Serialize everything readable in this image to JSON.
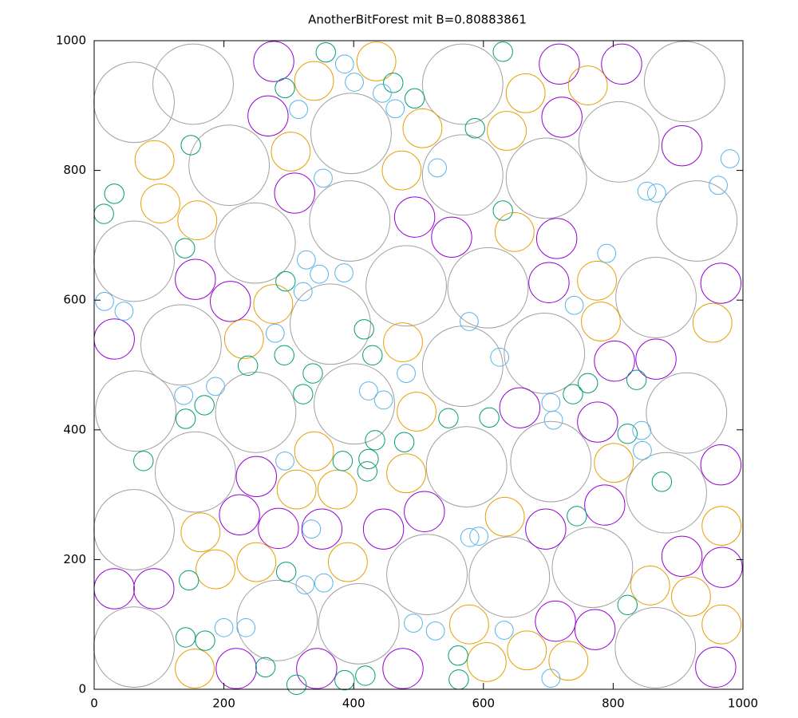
{
  "chart_data": {
    "type": "circles",
    "title": "AnotherBitForest mit B=0.80883861",
    "xlim": [
      0,
      1000
    ],
    "ylim": [
      0,
      1000
    ],
    "xticks": [
      0,
      200,
      400,
      600,
      800,
      1000
    ],
    "yticks": [
      0,
      200,
      400,
      600,
      800,
      1000
    ],
    "series": [
      {
        "color": "#a0a0a0",
        "x": [
          61.5,
          152.5,
          396,
          568,
          910,
          208,
          568,
          697,
          809,
          394,
          248,
          61.5,
          929,
          481,
          607,
          364,
          866,
          134,
          568,
          694,
          401,
          249,
          64,
          574,
          704,
          913,
          156,
          882,
          61.5,
          513,
          640,
          768,
          282,
          408,
          61.5,
          865
        ],
        "values": [
          905,
          933,
          857,
          933,
          937,
          808,
          793,
          788,
          844,
          722,
          688,
          660,
          722,
          622,
          619,
          563,
          604,
          531,
          498,
          518,
          440,
          427,
          429,
          343,
          351,
          426,
          335,
          303,
          246,
          177,
          173,
          188,
          106,
          101,
          65,
          64
        ],
        "radius": [
          62,
          62,
          62,
          62,
          62,
          62,
          62,
          62,
          62,
          62,
          62,
          62,
          62,
          62,
          62,
          62,
          62,
          62,
          62,
          62,
          62,
          62,
          62,
          62,
          62,
          62,
          62,
          62,
          62,
          62,
          62,
          62,
          62,
          62,
          62,
          62
        ]
      },
      {
        "color": "#9400d3",
        "x": [
          276.8,
          717,
          813,
          268,
          721,
          309,
          494,
          551,
          713,
          906,
          156,
          210,
          701,
          966,
          31,
          802,
          866,
          656,
          776,
          250,
          966,
          224,
          284,
          351,
          446,
          509,
          787,
          906,
          968,
          696,
          31,
          92,
          711,
          772,
          219,
          343,
          476,
          958
        ],
        "values": [
          968,
          964,
          964,
          884,
          882,
          765,
          728,
          697,
          695,
          838,
          632,
          598,
          627,
          626,
          540,
          506,
          509,
          434,
          412,
          328,
          346,
          269,
          248,
          247,
          247,
          274,
          284,
          205,
          188,
          247,
          155,
          155,
          105,
          92,
          32,
          32,
          32,
          34
        ],
        "radius": [
          31,
          31,
          31,
          31,
          31,
          31,
          31,
          31,
          31,
          31,
          31,
          31,
          31,
          31,
          31,
          31,
          31,
          31,
          31,
          31,
          31,
          31,
          31,
          31,
          31,
          31,
          31,
          31,
          31,
          31,
          31,
          31,
          31,
          31,
          31,
          31,
          31,
          31
        ]
      },
      {
        "color": "#e69f00",
        "x": [
          435,
          339,
          506,
          636,
          665,
          761,
          303,
          474,
          93,
          102,
          159,
          648,
          775,
          781,
          276,
          231,
          476,
          953,
          497,
          339,
          312,
          375,
          481,
          801,
          633,
          164,
          187,
          250,
          391,
          967,
          857,
          920,
          967,
          578,
          605,
          667,
          731,
          155
        ],
        "values": [
          968,
          938,
          865,
          861,
          919,
          931,
          829,
          800,
          816,
          749,
          723,
          705,
          630,
          567,
          594,
          540,
          535,
          565,
          428,
          367,
          308,
          308,
          333,
          349,
          266,
          242,
          185,
          196,
          196,
          252,
          160,
          143,
          100,
          100,
          42,
          60,
          44,
          32
        ],
        "radius": [
          30,
          30,
          30,
          30,
          30,
          30,
          30,
          30,
          30,
          30,
          30,
          30,
          30,
          30,
          30,
          30,
          30,
          30,
          30,
          30,
          30,
          30,
          30,
          30,
          30,
          30,
          30,
          30,
          30,
          30,
          30,
          30,
          30,
          30,
          30,
          30,
          30,
          30
        ]
      },
      {
        "color": "#009e73",
        "x": [
          494,
          461,
          294,
          630,
          357,
          587,
          149,
          31,
          15,
          140,
          630,
          295,
          416,
          429,
          293,
          337,
          322,
          237,
          141,
          170,
          76,
          171,
          141,
          146,
          296,
          421,
          423,
          433,
          383,
          478,
          546,
          609,
          738,
          761,
          836,
          822,
          875,
          744,
          822,
          561,
          562,
          418,
          386,
          312,
          264
        ],
        "values": [
          911,
          935,
          927,
          983,
          982,
          865,
          839,
          764,
          733,
          680,
          738,
          629,
          555,
          515,
          515,
          487,
          455,
          499,
          417,
          438,
          352,
          75,
          80,
          168,
          181,
          336,
          355,
          384,
          352,
          381,
          418,
          419,
          455,
          472,
          477,
          394,
          320,
          267,
          130,
          52,
          15,
          21,
          14,
          7,
          34
        ],
        "radius": [
          15,
          15,
          15,
          15,
          15,
          15,
          15,
          15,
          15,
          15,
          15,
          15,
          15,
          15,
          15,
          15,
          15,
          15,
          15,
          15,
          15,
          15,
          15,
          15,
          15,
          15,
          15,
          15,
          15,
          15,
          15,
          15,
          15,
          15,
          15,
          15,
          15,
          15,
          15,
          15,
          15,
          15,
          15,
          15,
          15
        ]
      },
      {
        "color": "#56b4e9",
        "x": [
          386,
          315,
          444,
          464,
          401,
          353,
          529,
          327,
          347,
          385,
          322,
          423,
          481,
          446,
          578,
          625,
          740,
          790,
          844,
          845,
          704,
          708,
          187,
          279,
          294,
          335,
          354,
          325,
          200,
          234,
          492,
          526,
          579,
          593,
          632,
          704,
          852,
          867,
          962,
          980,
          16,
          46,
          138
        ],
        "values": [
          964,
          894,
          919,
          895,
          936,
          788,
          804,
          662,
          640,
          642,
          613,
          460,
          487,
          446,
          567,
          512,
          592,
          672,
          399,
          368,
          442,
          415,
          467,
          549,
          352,
          247,
          164,
          161,
          95,
          95,
          102,
          90,
          234,
          236,
          91,
          17,
          768,
          765,
          777,
          818,
          598,
          583,
          453
        ],
        "radius": [
          14,
          14,
          14,
          14,
          14,
          14,
          14,
          14,
          14,
          14,
          14,
          14,
          14,
          14,
          14,
          14,
          14,
          14,
          14,
          14,
          14,
          14,
          14,
          14,
          14,
          14,
          14,
          14,
          14,
          14,
          14,
          14,
          14,
          14,
          14,
          14,
          14,
          14,
          14,
          14,
          14,
          14,
          14
        ]
      }
    ]
  }
}
